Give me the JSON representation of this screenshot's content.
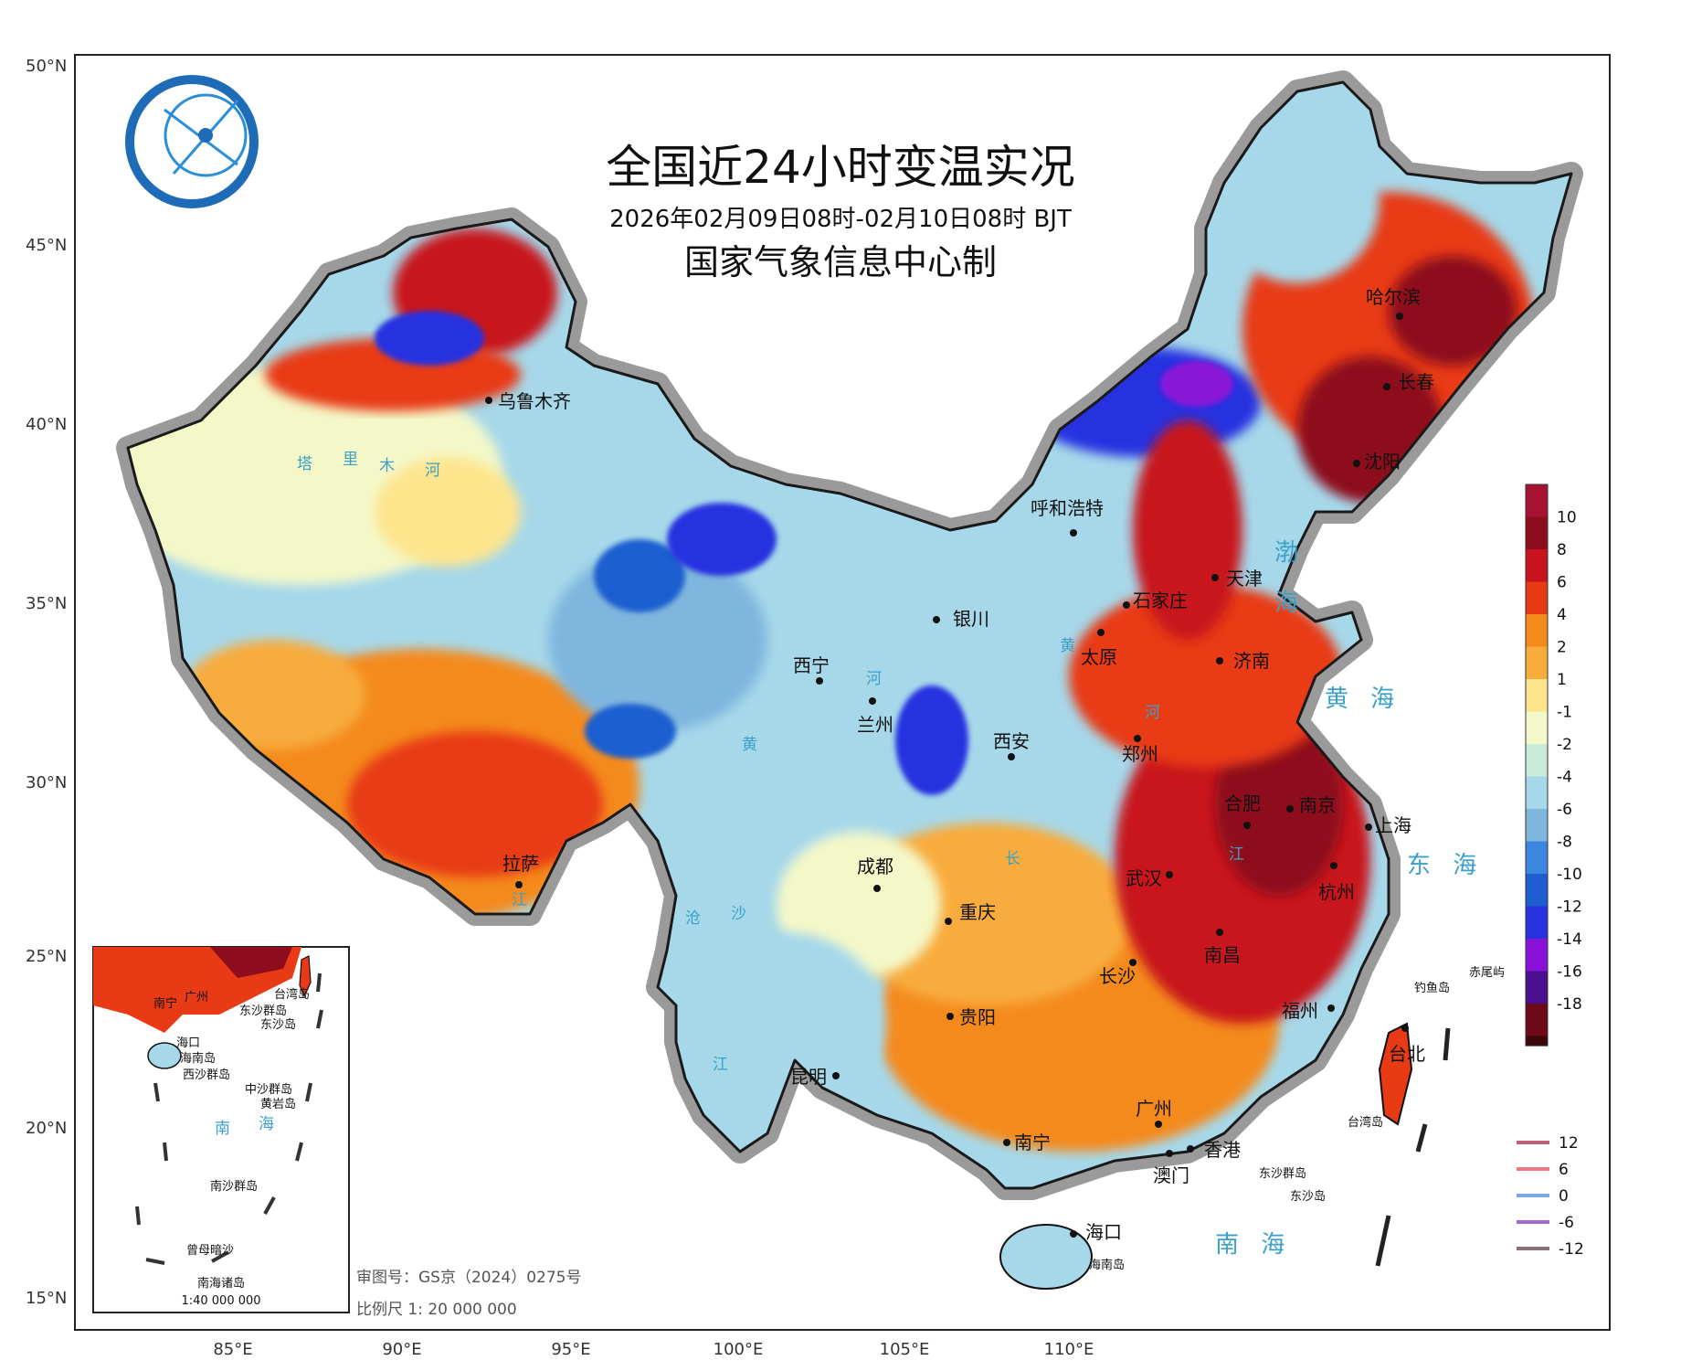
{
  "title": {
    "main": "全国近24小时变温实况",
    "time": "2026年02月09日08时-02月10日08时 BJT",
    "issuer": "国家气象信息中心制"
  },
  "axes": {
    "lat_labels": [
      "50°N",
      "45°N",
      "40°N",
      "35°N",
      "30°N",
      "25°N",
      "20°N",
      "15°N"
    ],
    "lon_labels": [
      "85°E",
      "90°E",
      "95°E",
      "100°E",
      "105°E",
      "110°E"
    ]
  },
  "cities": [
    {
      "id": "urumqi",
      "name": "乌鲁木齐"
    },
    {
      "id": "harbin",
      "name": "哈尔滨"
    },
    {
      "id": "changchun",
      "name": "长春"
    },
    {
      "id": "shenyang",
      "name": "沈阳"
    },
    {
      "id": "hohhot",
      "name": "呼和浩特"
    },
    {
      "id": "tianjin",
      "name": "天津"
    },
    {
      "id": "shijiazhuang",
      "name": "石家庄"
    },
    {
      "id": "yinchuan",
      "name": "银川"
    },
    {
      "id": "taiyuan",
      "name": "太原"
    },
    {
      "id": "jinan",
      "name": "济南"
    },
    {
      "id": "xining",
      "name": "西宁"
    },
    {
      "id": "lanzhou",
      "name": "兰州"
    },
    {
      "id": "xian",
      "name": "西安"
    },
    {
      "id": "zhengzhou",
      "name": "郑州"
    },
    {
      "id": "hefei",
      "name": "合肥"
    },
    {
      "id": "nanjing",
      "name": "南京"
    },
    {
      "id": "shanghai",
      "name": "上海"
    },
    {
      "id": "lhasa",
      "name": "拉萨"
    },
    {
      "id": "chengdu",
      "name": "成都"
    },
    {
      "id": "wuhan",
      "name": "武汉"
    },
    {
      "id": "hangzhou",
      "name": "杭州"
    },
    {
      "id": "chongqing",
      "name": "重庆"
    },
    {
      "id": "changsha",
      "name": "长沙"
    },
    {
      "id": "nanchang",
      "name": "南昌"
    },
    {
      "id": "guiyang",
      "name": "贵阳"
    },
    {
      "id": "fuzhou",
      "name": "福州"
    },
    {
      "id": "taipei",
      "name": "台北"
    },
    {
      "id": "kunming",
      "name": "昆明"
    },
    {
      "id": "guangzhou",
      "name": "广州"
    },
    {
      "id": "nanning",
      "name": "南宁"
    },
    {
      "id": "hongkong",
      "name": "香港"
    },
    {
      "id": "macau",
      "name": "澳门"
    },
    {
      "id": "haikou",
      "name": "海口"
    }
  ],
  "islands": {
    "diaoyu": "钓鱼岛",
    "chiwei": "赤尾屿",
    "taiwan_strait": "台湾岛",
    "dongsha": "东沙群岛",
    "dongsha_island": "东沙岛",
    "hainan": "海南岛"
  },
  "seas": {
    "bohai": "渤",
    "bohai2": "海",
    "huanghai": "黄  海",
    "donghai": "东  海",
    "nanhai": "南  海"
  },
  "rivers": {
    "tarim1": "塔",
    "tarim2": "里",
    "tarim3": "木",
    "tarim4": "河",
    "huang1": "黄",
    "huang2": "河",
    "huang3": "黄",
    "huang4": "河",
    "chang1": "长",
    "chang2": "江",
    "chang3": "江",
    "lancang1": "沧",
    "lancang2": "沙",
    "lancang3": "江"
  },
  "inset": {
    "title": "南海诸岛",
    "scale": "1:40 000 000",
    "labels": {
      "nanning": "南宁",
      "guangzhou": "广州",
      "taiwan": "台湾岛",
      "dongsha": "东沙群岛",
      "dongsha_is": "东沙岛",
      "haikou": "海口",
      "hainan": "海南岛",
      "xisha": "西沙群岛",
      "zhongsha": "中沙群岛",
      "huangyan": "黄岩岛",
      "nan": "南",
      "hai": "海",
      "nansha": "南沙群岛",
      "zengmu": "曾母暗沙"
    }
  },
  "footer": {
    "review": "审图号：GS京（2024）0275号",
    "scale": "比例尺  1:  20 000 000"
  },
  "legend": {
    "colorbar": [
      {
        "label": "10",
        "color": "#8e0d1c"
      },
      {
        "label": "8",
        "color": "#c8131f"
      },
      {
        "label": "6",
        "color": "#e83a14"
      },
      {
        "label": "4",
        "color": "#f48a1c"
      },
      {
        "label": "2",
        "color": "#f8ac3c"
      },
      {
        "label": "1",
        "color": "#fde58e"
      },
      {
        "label": "-1",
        "color": "#f4f8c8"
      },
      {
        "label": "-2",
        "color": "#c8ecd8"
      },
      {
        "label": "-4",
        "color": "#a6d8ea"
      },
      {
        "label": "-6",
        "color": "#7fb6de"
      },
      {
        "label": "-8",
        "color": "#3a86e0"
      },
      {
        "label": "-10",
        "color": "#1e5ed0"
      },
      {
        "label": "-12",
        "color": "#2632e0"
      },
      {
        "label": "-14",
        "color": "#8a12d8"
      },
      {
        "label": "-16",
        "color": "#4a0e8e"
      },
      {
        "label": "-18",
        "color": "#6e0a18"
      }
    ],
    "colorbar_top_color": "#a81232",
    "colorbar_bottom_color": "#3a0808",
    "contours": [
      {
        "label": "12",
        "color": "#c06078"
      },
      {
        "label": "6",
        "color": "#ec7880"
      },
      {
        "label": "0",
        "color": "#7aa8e4"
      },
      {
        "label": "-6",
        "color": "#a06ad0"
      },
      {
        "label": "-12",
        "color": "#8a7078"
      }
    ]
  },
  "logo": "cma-logo-icon"
}
